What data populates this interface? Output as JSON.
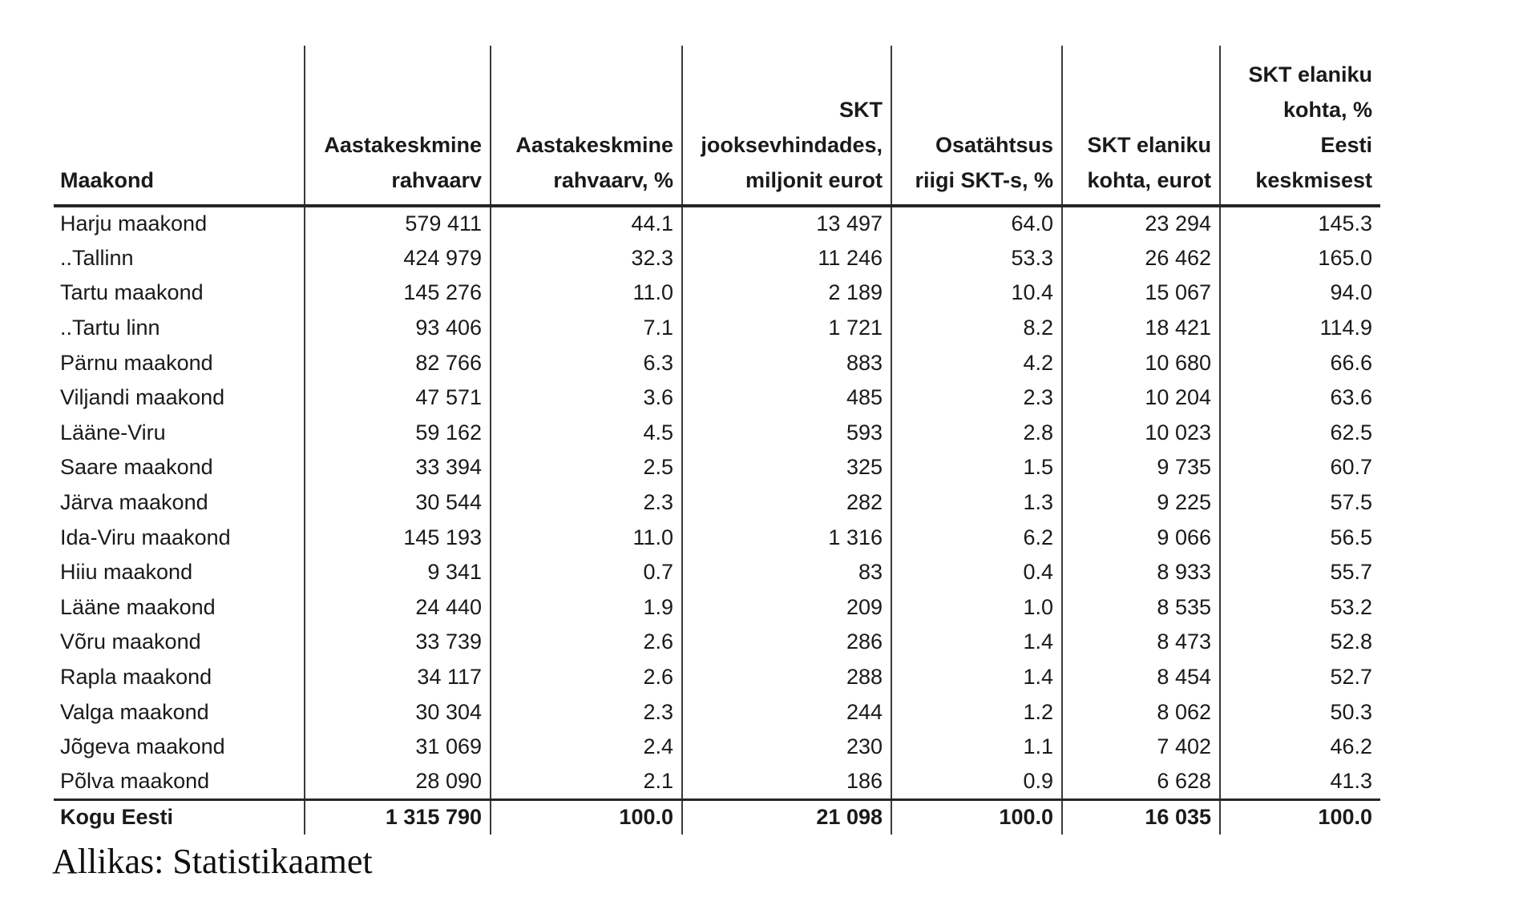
{
  "table": {
    "header_lines": [
      [
        "Maakond"
      ],
      [
        "Aastakeskmine",
        "rahvaarv"
      ],
      [
        "Aastakeskmine",
        "rahvaarv, %"
      ],
      [
        "SKT",
        "jooksevhindades,",
        "miljonit eurot"
      ],
      [
        "Osatähtsus",
        "riigi SKT-s, %"
      ],
      [
        "SKT elaniku",
        "kohta, eurot"
      ],
      [
        "SKT elaniku",
        "kohta, %",
        "Eesti",
        "keskmisest"
      ]
    ],
    "rows": [
      [
        "Harju maakond",
        "579 411",
        "44.1",
        "13 497",
        "64.0",
        "23 294",
        "145.3"
      ],
      [
        "..Tallinn",
        "424 979",
        "32.3",
        "11 246",
        "53.3",
        "26 462",
        "165.0"
      ],
      [
        "Tartu maakond",
        "145 276",
        "11.0",
        "2 189",
        "10.4",
        "15 067",
        "94.0"
      ],
      [
        "..Tartu linn",
        "93 406",
        "7.1",
        "1 721",
        "8.2",
        "18 421",
        "114.9"
      ],
      [
        "Pärnu maakond",
        "82 766",
        "6.3",
        "883",
        "4.2",
        "10 680",
        "66.6"
      ],
      [
        "Viljandi maakond",
        "47 571",
        "3.6",
        "485",
        "2.3",
        "10 204",
        "63.6"
      ],
      [
        "Lääne-Viru",
        "59 162",
        "4.5",
        "593",
        "2.8",
        "10 023",
        "62.5"
      ],
      [
        "Saare maakond",
        "33 394",
        "2.5",
        "325",
        "1.5",
        "9 735",
        "60.7"
      ],
      [
        "Järva maakond",
        "30 544",
        "2.3",
        "282",
        "1.3",
        "9 225",
        "57.5"
      ],
      [
        "Ida-Viru maakond",
        "145 193",
        "11.0",
        "1 316",
        "6.2",
        "9 066",
        "56.5"
      ],
      [
        "Hiiu maakond",
        "9 341",
        "0.7",
        "83",
        "0.4",
        "8 933",
        "55.7"
      ],
      [
        "Lääne maakond",
        "24 440",
        "1.9",
        "209",
        "1.0",
        "8 535",
        "53.2"
      ],
      [
        "Võru maakond",
        "33 739",
        "2.6",
        "286",
        "1.4",
        "8 473",
        "52.8"
      ],
      [
        "Rapla maakond",
        "34 117",
        "2.6",
        "288",
        "1.4",
        "8 454",
        "52.7"
      ],
      [
        "Valga maakond",
        "30 304",
        "2.3",
        "244",
        "1.2",
        "8 062",
        "50.3"
      ],
      [
        "Jõgeva maakond",
        "31 069",
        "2.4",
        "230",
        "1.1",
        "7 402",
        "46.2"
      ],
      [
        "Põlva maakond",
        "28 090",
        "2.1",
        "186",
        "0.9",
        "6 628",
        "41.3"
      ]
    ],
    "total_row": [
      "Kogu Eesti",
      "1 315 790",
      "100.0",
      "21 098",
      "100.0",
      "16 035",
      "100.0"
    ]
  },
  "source_note": "Allikas: Statistikaamet",
  "colors": {
    "text": "#1a1a1a",
    "line": "#3a3a3a",
    "heavy_line": "#262626",
    "background": "#ffffff"
  },
  "chart_data": {
    "type": "table",
    "title": "",
    "columns": [
      "Maakond",
      "Aastakeskmine rahvaarv",
      "Aastakeskmine rahvaarv, %",
      "SKT jooksevhindades, miljonit eurot",
      "Osatähtsus riigi SKT-s, %",
      "SKT elaniku kohta, eurot",
      "SKT elaniku kohta, % Eesti keskmisest"
    ],
    "rows": [
      [
        "Harju maakond",
        579411,
        44.1,
        13497,
        64.0,
        23294,
        145.3
      ],
      [
        "..Tallinn",
        424979,
        32.3,
        11246,
        53.3,
        26462,
        165.0
      ],
      [
        "Tartu maakond",
        145276,
        11.0,
        2189,
        10.4,
        15067,
        94.0
      ],
      [
        "..Tartu linn",
        93406,
        7.1,
        1721,
        8.2,
        18421,
        114.9
      ],
      [
        "Pärnu maakond",
        82766,
        6.3,
        883,
        4.2,
        10680,
        66.6
      ],
      [
        "Viljandi maakond",
        47571,
        3.6,
        485,
        2.3,
        10204,
        63.6
      ],
      [
        "Lääne-Viru",
        59162,
        4.5,
        593,
        2.8,
        10023,
        62.5
      ],
      [
        "Saare maakond",
        33394,
        2.5,
        325,
        1.5,
        9735,
        60.7
      ],
      [
        "Järva maakond",
        30544,
        2.3,
        282,
        1.3,
        9225,
        57.5
      ],
      [
        "Ida-Viru maakond",
        145193,
        11.0,
        1316,
        6.2,
        9066,
        56.5
      ],
      [
        "Hiiu maakond",
        9341,
        0.7,
        83,
        0.4,
        8933,
        55.7
      ],
      [
        "Lääne maakond",
        24440,
        1.9,
        209,
        1.0,
        8535,
        53.2
      ],
      [
        "Võru maakond",
        33739,
        2.6,
        286,
        1.4,
        8473,
        52.8
      ],
      [
        "Rapla maakond",
        34117,
        2.6,
        288,
        1.4,
        8454,
        52.7
      ],
      [
        "Valga maakond",
        30304,
        2.3,
        244,
        1.2,
        8062,
        50.3
      ],
      [
        "Jõgeva maakond",
        31069,
        2.4,
        230,
        1.1,
        7402,
        46.2
      ],
      [
        "Põlva maakond",
        28090,
        2.1,
        186,
        0.9,
        6628,
        41.3
      ],
      [
        "Kogu Eesti",
        1315790,
        100.0,
        21098,
        100.0,
        16035,
        100.0
      ]
    ],
    "annotations": [
      "Allikas: Statistikaamet"
    ]
  }
}
